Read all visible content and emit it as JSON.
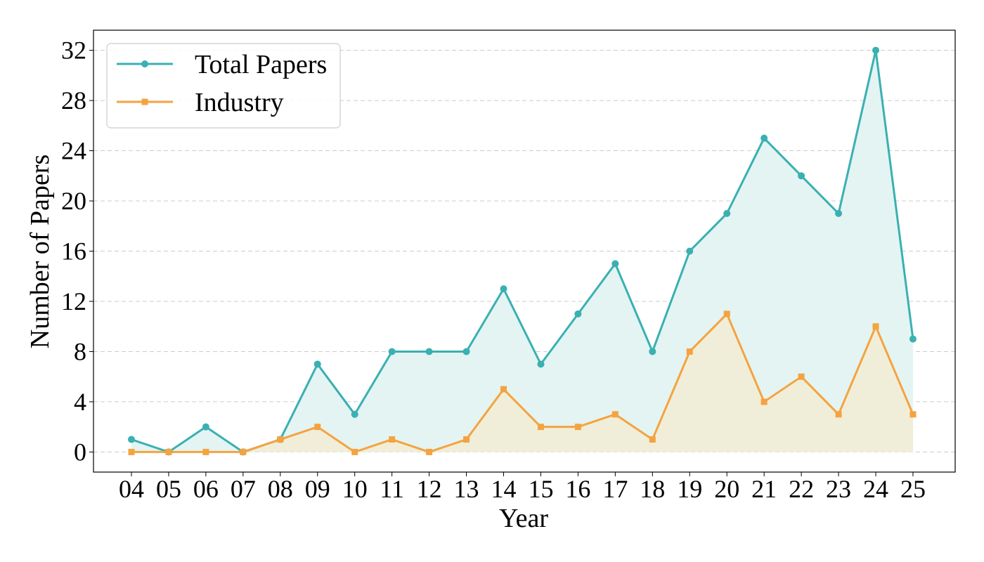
{
  "chart_data": {
    "type": "line",
    "title": "",
    "xlabel": "Year",
    "ylabel": "Number of Papers",
    "categories": [
      "04",
      "05",
      "06",
      "07",
      "08",
      "09",
      "10",
      "11",
      "12",
      "13",
      "14",
      "15",
      "16",
      "17",
      "18",
      "19",
      "20",
      "21",
      "22",
      "23",
      "24",
      "25"
    ],
    "ylim": [
      -1.6,
      33.6
    ],
    "yticks": [
      0,
      4,
      8,
      12,
      16,
      20,
      24,
      28,
      32
    ],
    "grid": true,
    "legend_position": "top-left",
    "series": [
      {
        "name": "Total Papers",
        "marker": "circle",
        "color": "#3ab0b2",
        "fill": "#e3f4f3",
        "values": [
          1,
          0,
          2,
          0,
          1,
          7,
          3,
          8,
          8,
          8,
          13,
          7,
          11,
          15,
          8,
          16,
          19,
          25,
          22,
          19,
          32,
          9
        ]
      },
      {
        "name": "Industry",
        "marker": "square",
        "color": "#f5a340",
        "fill": "#f0eed8",
        "values": [
          0,
          0,
          0,
          0,
          1,
          2,
          0,
          1,
          0,
          1,
          5,
          2,
          2,
          3,
          1,
          8,
          11,
          4,
          6,
          3,
          10,
          3
        ]
      }
    ]
  }
}
